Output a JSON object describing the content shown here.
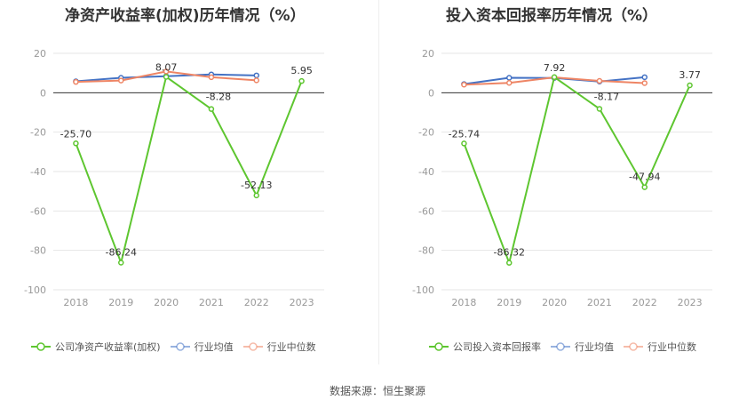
{
  "source": "数据来源：恒生聚源",
  "chart_data": [
    {
      "type": "line",
      "title": "净资产收益率(加权)历年情况（%）",
      "categories": [
        "2018",
        "2019",
        "2020",
        "2021",
        "2022",
        "2023"
      ],
      "ylim": [
        -100,
        20
      ],
      "yticks": [
        20,
        0,
        -20,
        -40,
        -60,
        -80,
        -100
      ],
      "grid": true,
      "legend_position": "bottom",
      "series": [
        {
          "name": "公司净资产收益率(加权)",
          "color": "#5ec630",
          "values": [
            -25.7,
            -86.24,
            8.07,
            -8.28,
            -52.13,
            5.95
          ],
          "labels": [
            "-25.70",
            "-86.24",
            "8.07",
            "-8.28",
            "-52.13",
            "5.95"
          ]
        },
        {
          "name": "行业均值",
          "color": "#4472c4",
          "values": [
            5.8,
            7.6,
            8.4,
            9.3,
            8.8,
            null
          ]
        },
        {
          "name": "行业中位数",
          "color": "#ee8565",
          "values": [
            5.5,
            6.2,
            10.8,
            7.9,
            6.3,
            null
          ]
        }
      ]
    },
    {
      "type": "line",
      "title": "投入资本回报率历年情况（%）",
      "categories": [
        "2018",
        "2019",
        "2020",
        "2021",
        "2022",
        "2023"
      ],
      "ylim": [
        -100,
        20
      ],
      "yticks": [
        20,
        0,
        -20,
        -40,
        -60,
        -80,
        -100
      ],
      "grid": true,
      "legend_position": "bottom",
      "series": [
        {
          "name": "公司投入资本回报率",
          "color": "#5ec630",
          "values": [
            -25.74,
            -86.32,
            7.92,
            -8.17,
            -47.94,
            3.77
          ],
          "labels": [
            "-25.74",
            "-86.32",
            "7.92",
            "-8.17",
            "-47.94",
            "3.77"
          ]
        },
        {
          "name": "行业均值",
          "color": "#4472c4",
          "values": [
            4.4,
            7.6,
            7.5,
            5.7,
            7.9,
            null
          ]
        },
        {
          "name": "行业中位数",
          "color": "#ee8565",
          "values": [
            4.1,
            5.0,
            7.8,
            6.0,
            4.9,
            null
          ]
        }
      ]
    }
  ]
}
